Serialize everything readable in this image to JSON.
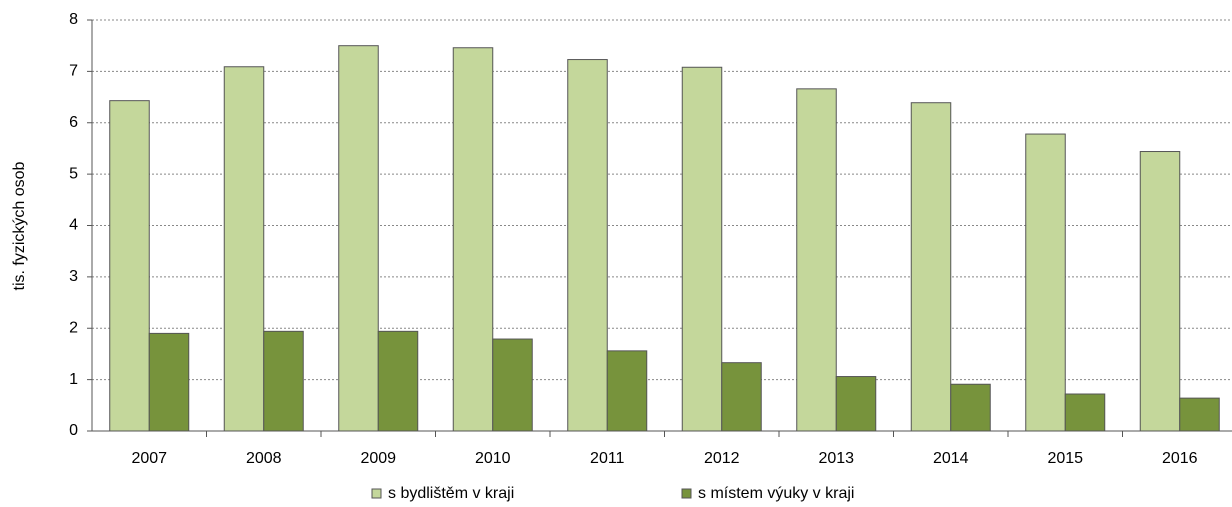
{
  "chart_data": {
    "type": "bar",
    "ylabel": "tis. fyzických osob",
    "categories": [
      "2007",
      "2008",
      "2009",
      "2010",
      "2011",
      "2012",
      "2013",
      "2014",
      "2015",
      "2016"
    ],
    "series": [
      {
        "name": "s bydlištěm v kraji",
        "color": "#c4d79b",
        "values": [
          6.43,
          7.09,
          7.5,
          7.46,
          7.23,
          7.08,
          6.66,
          6.39,
          5.78,
          5.44
        ]
      },
      {
        "name": "s místem výuky v kraji",
        "color": "#77933c",
        "values": [
          1.9,
          1.94,
          1.94,
          1.79,
          1.56,
          1.33,
          1.06,
          0.91,
          0.72,
          0.64
        ]
      }
    ],
    "ylim": [
      0,
      8
    ],
    "yticks": [
      0,
      1,
      2,
      3,
      4,
      5,
      6,
      7,
      8
    ],
    "grid": true,
    "legend": "bottom"
  }
}
